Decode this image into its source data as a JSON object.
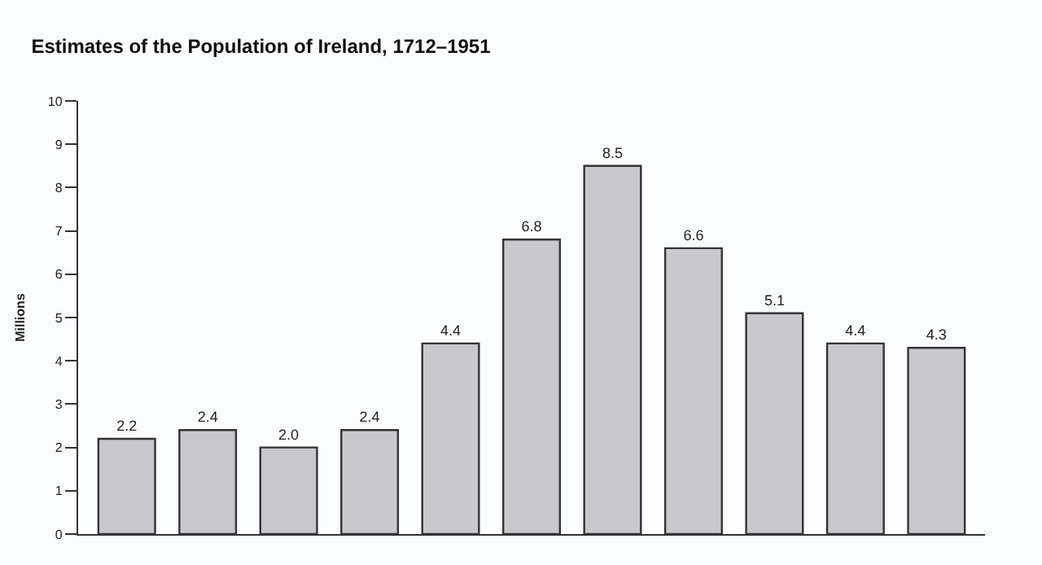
{
  "chart_data": {
    "type": "bar",
    "title": "Estimates of the Population of Ireland, 1712–1951",
    "ylabel": "Millions",
    "categories": [
      null,
      null,
      null,
      null,
      null,
      null,
      null,
      null,
      null,
      null,
      null
    ],
    "values": [
      2.2,
      2.4,
      2.0,
      2.4,
      4.4,
      6.8,
      8.5,
      6.6,
      5.1,
      4.4,
      4.3
    ],
    "color": "#c9c9cd",
    "ylim": [
      0,
      10
    ],
    "yticks": [
      0,
      1,
      2,
      3,
      4,
      5,
      6,
      7,
      8,
      9,
      10
    ],
    "value_labels": [
      "2.2",
      "2.4",
      "2.0",
      "2.4",
      "4.4",
      "6.8",
      "8.5",
      "6.6",
      "5.1",
      "4.4",
      "4.3"
    ]
  }
}
